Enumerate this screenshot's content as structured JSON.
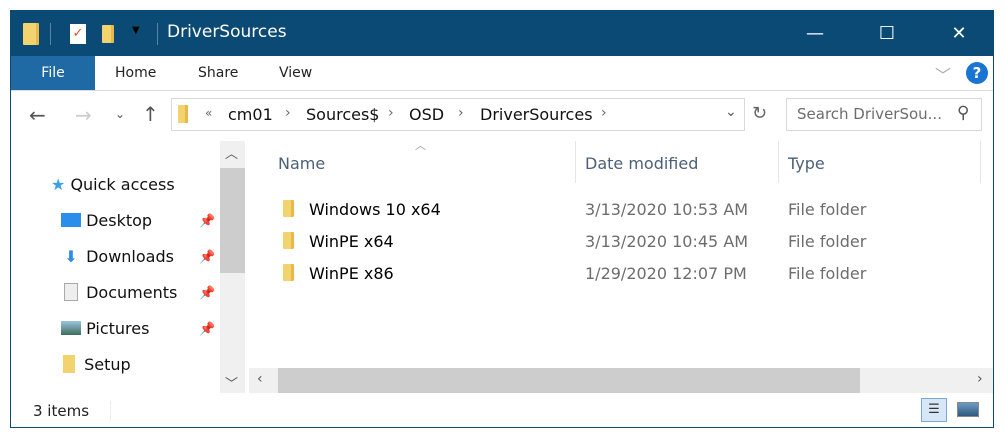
{
  "window": {
    "title": "DriverSources",
    "minimize": "—",
    "maximize": "☐",
    "close": "✕"
  },
  "ribbon": {
    "tabs": [
      "File",
      "Home",
      "Share",
      "View"
    ],
    "help": "?",
    "expand": "﹀"
  },
  "address": {
    "overflow": "«",
    "crumbs": [
      "cm01",
      "Sources$",
      "OSD",
      "DriverSources"
    ],
    "separator": "›"
  },
  "search": {
    "placeholder": "Search DriverSou..."
  },
  "nav": {
    "items": [
      {
        "label": "Quick access",
        "icon": "star-icon",
        "pinned": false
      },
      {
        "label": "Desktop",
        "icon": "desktop-icon",
        "pinned": true
      },
      {
        "label": "Downloads",
        "icon": "download-icon",
        "pinned": true
      },
      {
        "label": "Documents",
        "icon": "documents-icon",
        "pinned": true
      },
      {
        "label": "Pictures",
        "icon": "pictures-icon",
        "pinned": true
      },
      {
        "label": "Setup",
        "icon": "folder-icon",
        "pinned": false
      }
    ]
  },
  "files": {
    "columns": [
      "Name",
      "Date modified",
      "Type"
    ],
    "rows": [
      {
        "name": "Windows 10 x64",
        "date": "3/13/2020 10:53 AM",
        "type": "File folder"
      },
      {
        "name": "WinPE x64",
        "date": "3/13/2020 10:45 AM",
        "type": "File folder"
      },
      {
        "name": "WinPE x86",
        "date": "1/29/2020 12:07 PM",
        "type": "File folder"
      }
    ]
  },
  "status": {
    "count": "3 items"
  },
  "colors": {
    "titlebar": "#0a4a74",
    "file_tab": "#1f6aa5",
    "folder": "#f3d36e"
  }
}
